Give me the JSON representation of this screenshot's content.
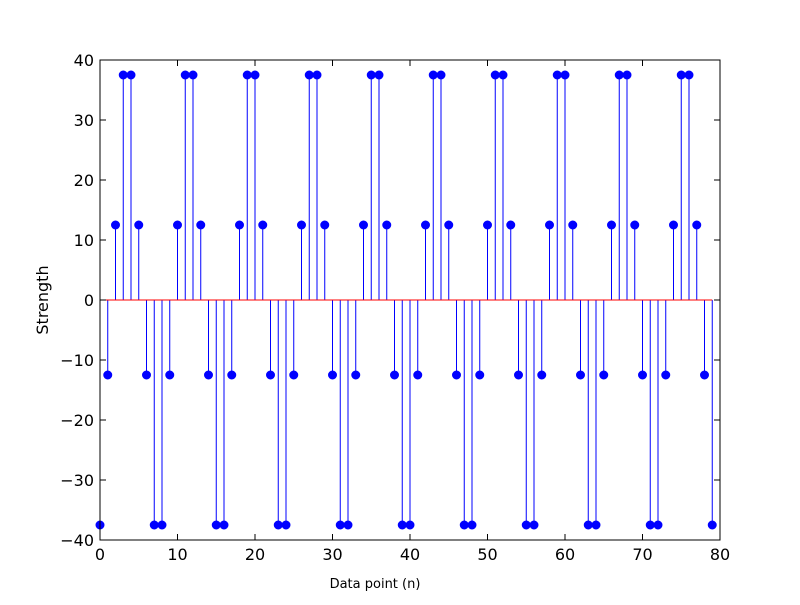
{
  "chart_data": {
    "type": "stem",
    "title": "",
    "xlabel": "Data point (n)",
    "ylabel": "Strength",
    "xlim": [
      0,
      80
    ],
    "ylim": [
      -40,
      40
    ],
    "xticks": [
      0,
      10,
      20,
      30,
      40,
      50,
      60,
      70,
      80
    ],
    "yticks": [
      -40,
      -30,
      -20,
      -10,
      0,
      10,
      20,
      30,
      40
    ],
    "grid": false,
    "baseline": 0,
    "stem_color": "#0000ff",
    "marker_color": "#0000ff",
    "baseline_color": "#ff0000",
    "x": [
      0,
      1,
      2,
      3,
      4,
      5,
      6,
      7,
      8,
      9,
      10,
      11,
      12,
      13,
      14,
      15,
      16,
      17,
      18,
      19,
      20,
      21,
      22,
      23,
      24,
      25,
      26,
      27,
      28,
      29,
      30,
      31,
      32,
      33,
      34,
      35,
      36,
      37,
      38,
      39,
      40,
      41,
      42,
      43,
      44,
      45,
      46,
      47,
      48,
      49,
      50,
      51,
      52,
      53,
      54,
      55,
      56,
      57,
      58,
      59,
      60,
      61,
      62,
      63,
      64,
      65,
      66,
      67,
      68,
      69,
      70,
      71,
      72,
      73,
      74,
      75,
      76,
      77,
      78,
      79
    ],
    "y": [
      -37.5,
      -12.5,
      12.5,
      37.5,
      37.5,
      12.5,
      -12.5,
      -37.5,
      -37.5,
      -12.5,
      12.5,
      37.5,
      37.5,
      12.5,
      -12.5,
      -37.5,
      -37.5,
      -12.5,
      12.5,
      37.5,
      37.5,
      12.5,
      -12.5,
      -37.5,
      -37.5,
      -12.5,
      12.5,
      37.5,
      37.5,
      12.5,
      -12.5,
      -37.5,
      -37.5,
      -12.5,
      12.5,
      37.5,
      37.5,
      12.5,
      -12.5,
      -37.5,
      -37.5,
      -12.5,
      12.5,
      37.5,
      37.5,
      12.5,
      -12.5,
      -37.5,
      -37.5,
      -12.5,
      12.5,
      37.5,
      37.5,
      12.5,
      -12.5,
      -37.5,
      -37.5,
      -12.5,
      12.5,
      37.5,
      37.5,
      12.5,
      -12.5,
      -37.5,
      -37.5,
      -12.5,
      12.5,
      37.5,
      37.5,
      12.5,
      -12.5,
      -37.5,
      -37.5,
      -12.5,
      12.5,
      37.5,
      37.5,
      12.5,
      -12.5,
      -37.5
    ]
  }
}
